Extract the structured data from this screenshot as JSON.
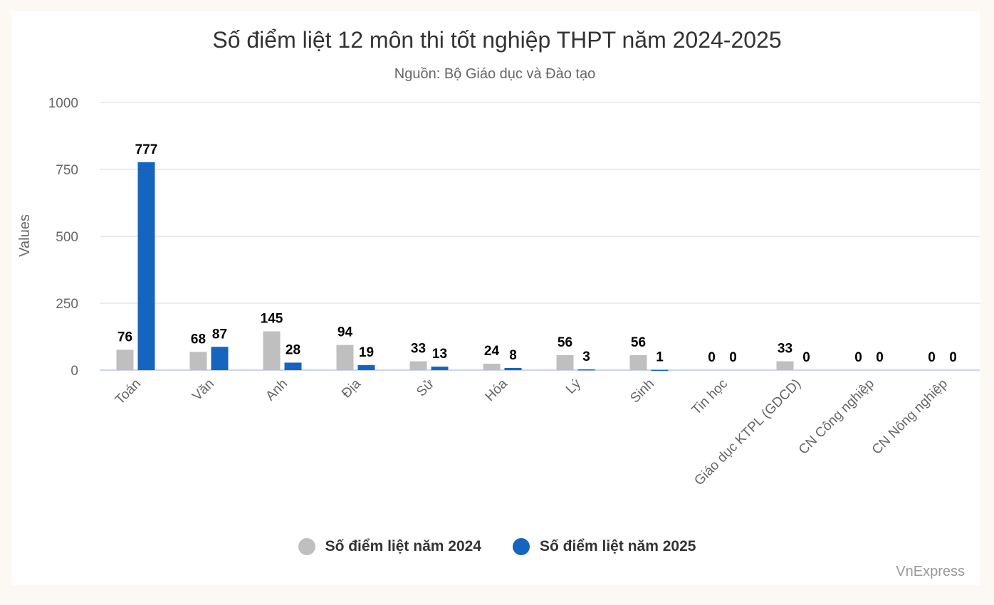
{
  "header": {
    "title": "Số điểm liệt 12 môn thi tốt nghiệp THPT năm 2024-2025",
    "subtitle": "Nguồn: Bộ Giáo dục và Đào tạo"
  },
  "credit": "VnExpress",
  "colors": {
    "series_2024": "#bfbfbf",
    "series_2025": "#1565c0",
    "gridline": "#e6e6e6",
    "axis": "#ccd6eb",
    "background": "#fcf8f4",
    "card": "#ffffff"
  },
  "legend": [
    {
      "label": "Số điểm liệt năm 2024",
      "color": "#bfbfbf"
    },
    {
      "label": "Số điểm liệt năm 2025",
      "color": "#1565c0"
    }
  ],
  "chart_data": {
    "type": "bar",
    "title": "Số điểm liệt 12 môn thi tốt nghiệp THPT năm 2024-2025",
    "subtitle": "Nguồn: Bộ Giáo dục và Đào tạo",
    "xlabel": "",
    "ylabel": "Values",
    "ylim": [
      0,
      1000
    ],
    "yticks": [
      0,
      250,
      500,
      750,
      1000
    ],
    "grid": true,
    "legend_position": "bottom",
    "categories": [
      "Toán",
      "Văn",
      "Anh",
      "Địa",
      "Sử",
      "Hóa",
      "Lý",
      "Sinh",
      "Tin học",
      "Giáo dục KTPL (GDCD)",
      "CN Công nghiệp",
      "CN Nông nghiệp"
    ],
    "series": [
      {
        "name": "Số điểm liệt năm 2024",
        "color": "#bfbfbf",
        "values": [
          76,
          68,
          145,
          94,
          33,
          24,
          56,
          56,
          0,
          33,
          0,
          0
        ]
      },
      {
        "name": "Số điểm liệt năm 2025",
        "color": "#1565c0",
        "values": [
          777,
          87,
          28,
          19,
          13,
          8,
          3,
          1,
          0,
          0,
          0,
          0
        ]
      }
    ],
    "data_labels": true
  }
}
